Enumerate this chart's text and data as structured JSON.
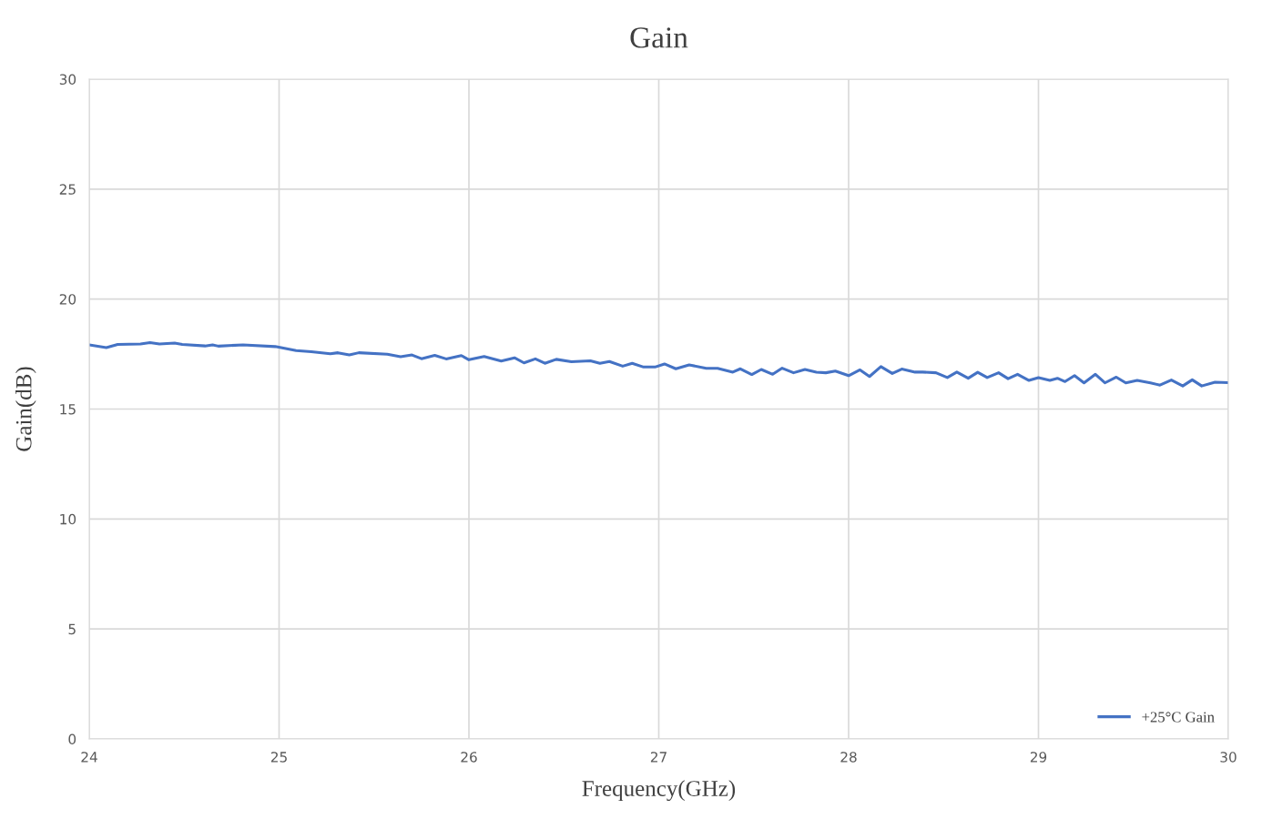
{
  "chart_data": {
    "type": "line",
    "title": "Gain",
    "xlabel": "Frequency(GHz)",
    "ylabel": "Gain(dB)",
    "xlim": [
      24,
      30
    ],
    "xticks": [
      24,
      25,
      26,
      27,
      28,
      29,
      30
    ],
    "ylim": [
      0,
      30
    ],
    "yticks": [
      0,
      5,
      10,
      15,
      20,
      25,
      30
    ],
    "grid": true,
    "legend": "bottom right",
    "marker": "none",
    "line_style": "solid",
    "x": [
      24.0,
      24.09,
      24.15,
      24.27,
      24.32,
      24.37,
      24.45,
      24.49,
      24.61,
      24.65,
      24.68,
      24.81,
      24.98,
      25.09,
      25.17,
      25.27,
      25.31,
      25.37,
      25.42,
      25.57,
      25.64,
      25.7,
      25.75,
      25.82,
      25.88,
      25.96,
      26.0,
      26.08,
      26.17,
      26.24,
      26.29,
      26.35,
      26.4,
      26.46,
      26.54,
      26.64,
      26.69,
      26.74,
      26.81,
      26.86,
      26.92,
      26.98,
      27.03,
      27.09,
      27.16,
      27.25,
      27.31,
      27.39,
      27.43,
      27.49,
      27.54,
      27.6,
      27.65,
      27.71,
      27.77,
      27.83,
      27.88,
      27.93,
      28.0,
      28.06,
      28.11,
      28.17,
      28.23,
      28.28,
      28.35,
      28.39,
      28.46,
      28.52,
      28.57,
      28.63,
      28.68,
      28.73,
      28.79,
      28.84,
      28.89,
      28.95,
      29.0,
      29.06,
      29.1,
      29.14,
      29.19,
      29.24,
      29.3,
      29.35,
      29.41,
      29.46,
      29.52,
      29.59,
      29.64,
      29.7,
      29.76,
      29.81,
      29.86,
      29.93,
      30.0
    ],
    "series": [
      {
        "name": "+25°C Gain",
        "color": "#4472c4",
        "values": [
          17.92,
          17.79,
          17.94,
          17.96,
          18.02,
          17.96,
          18.0,
          17.94,
          17.87,
          17.92,
          17.86,
          17.92,
          17.84,
          17.66,
          17.61,
          17.51,
          17.56,
          17.46,
          17.56,
          17.49,
          17.38,
          17.46,
          17.29,
          17.44,
          17.28,
          17.43,
          17.24,
          17.39,
          17.18,
          17.33,
          17.1,
          17.28,
          17.08,
          17.26,
          17.15,
          17.19,
          17.08,
          17.16,
          16.95,
          17.08,
          16.91,
          16.91,
          17.05,
          16.83,
          17.01,
          16.85,
          16.85,
          16.68,
          16.83,
          16.57,
          16.8,
          16.58,
          16.86,
          16.65,
          16.8,
          16.68,
          16.65,
          16.73,
          16.52,
          16.78,
          16.48,
          16.93,
          16.62,
          16.82,
          16.68,
          16.68,
          16.65,
          16.43,
          16.68,
          16.4,
          16.67,
          16.43,
          16.65,
          16.38,
          16.58,
          16.3,
          16.43,
          16.3,
          16.4,
          16.25,
          16.52,
          16.19,
          16.58,
          16.19,
          16.45,
          16.19,
          16.3,
          16.19,
          16.09,
          16.32,
          16.05,
          16.33,
          16.05,
          16.22,
          16.2
        ]
      }
    ]
  }
}
